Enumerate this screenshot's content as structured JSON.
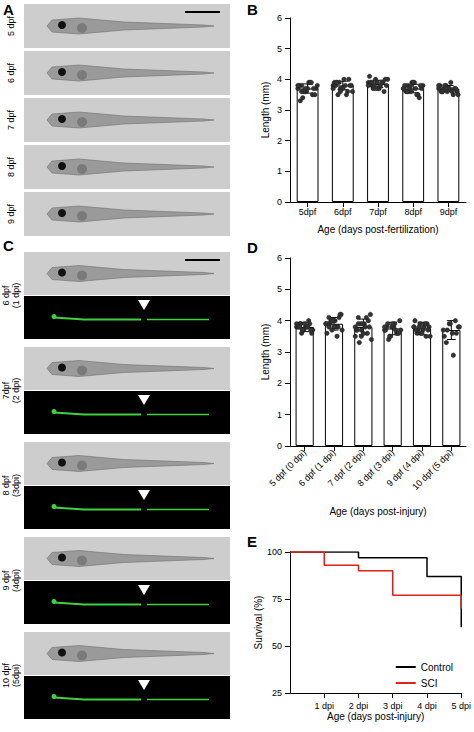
{
  "image_panels": [
    {
      "panel_label": "A",
      "rows": [
        [
          "5 dpf"
        ],
        [
          "6 dpf"
        ],
        [
          "7 dpf"
        ],
        [
          "8 dpf"
        ],
        [
          "9 dpf"
        ]
      ]
    },
    {
      "panel_label": "C",
      "rows": [
        [
          "6 dpf",
          "(1 dpi)"
        ],
        [
          "7dpf",
          "(2 dpi)"
        ],
        [
          "8 dpf",
          "(3dpi)"
        ],
        [
          "9 dpf",
          "(4dpi)"
        ],
        [
          "10 dpf",
          "(5dpi)"
        ]
      ]
    }
  ],
  "chart_data": [
    {
      "panel_label": "B",
      "type": "bar",
      "categories": [
        "5dpf",
        "6dpf",
        "7dpf",
        "8dpf",
        "9dpf"
      ],
      "values": [
        3.7,
        3.8,
        3.85,
        3.7,
        3.7
      ],
      "errors": [
        0.15,
        0.14,
        0.12,
        0.14,
        0.1
      ],
      "points": [
        [
          3.7,
          3.8,
          3.6,
          3.9,
          3.5,
          3.7,
          3.8,
          3.4,
          3.6,
          3.9,
          3.7,
          3.8,
          3.3,
          3.6,
          3.7,
          3.9,
          3.5,
          3.8,
          3.6,
          3.7
        ],
        [
          3.8,
          3.9,
          3.7,
          4.0,
          3.6,
          3.8,
          3.9,
          3.5,
          3.7,
          3.8,
          4.0,
          3.6,
          3.8,
          3.9,
          3.7,
          3.5,
          3.8,
          3.7,
          3.9,
          3.6
        ],
        [
          3.9,
          3.8,
          4.0,
          3.7,
          3.9,
          3.8,
          4.1,
          3.7,
          3.9,
          3.8,
          3.6,
          4.0,
          3.9,
          3.8,
          3.7,
          3.9,
          4.0,
          3.8,
          3.9,
          3.7
        ],
        [
          3.7,
          3.8,
          3.6,
          3.9,
          3.5,
          3.7,
          3.8,
          3.6,
          3.9,
          3.7,
          3.4,
          3.8,
          3.6,
          3.7,
          3.9,
          3.5,
          3.8,
          3.7,
          3.6,
          3.8
        ],
        [
          3.7,
          3.6,
          3.8,
          3.7,
          3.5,
          3.6,
          3.8,
          3.7,
          3.6,
          3.9,
          3.7,
          3.5,
          3.6,
          3.8,
          3.7,
          3.6,
          3.7,
          3.8,
          3.6,
          3.7
        ]
      ],
      "ylim": [
        0,
        6
      ],
      "yticks": [
        0,
        1,
        2,
        3,
        4,
        5,
        6
      ],
      "y_label": "Length (mm)",
      "x_label": "Age (days post-fertilization)",
      "color": "#ffffff",
      "marker": "circle",
      "grid": false
    },
    {
      "panel_label": "D",
      "type": "bar",
      "categories": [
        "5 dpf (0 dpi)",
        "6 dpf (1 dpi)",
        "7 dpf (2 dpi)",
        "8 dpf (3 dpi)",
        "9 dpf (4 dpi)",
        "10 dpf (5 dpi)"
      ],
      "values": [
        3.8,
        3.9,
        3.8,
        3.75,
        3.75,
        3.7
      ],
      "errors": [
        0.15,
        0.2,
        0.25,
        0.2,
        0.2,
        0.3
      ],
      "points": [
        [
          3.8,
          3.9,
          3.7,
          3.8,
          4.0,
          3.6,
          3.8,
          3.9,
          3.7,
          3.8,
          3.9,
          3.7,
          3.8,
          3.6,
          3.9,
          3.8,
          3.7,
          3.9,
          3.8,
          3.7
        ],
        [
          3.9,
          4.1,
          3.7,
          4.0,
          3.8,
          4.2,
          3.6,
          3.9,
          4.0,
          3.8,
          4.1,
          3.7,
          3.9,
          4.0,
          3.8,
          3.5,
          4.2,
          3.9,
          3.8,
          4.0
        ],
        [
          3.8,
          4.1,
          3.5,
          3.9,
          3.6,
          4.2,
          3.7,
          3.3,
          3.9,
          3.8,
          4.0,
          3.4,
          3.7,
          3.9,
          3.6,
          4.1,
          3.8,
          3.5,
          3.9,
          3.7
        ],
        [
          3.7,
          3.9,
          3.5,
          3.8,
          3.6,
          4.0,
          3.7,
          3.4,
          3.8,
          3.9,
          3.6,
          3.7,
          3.8,
          3.5,
          3.9,
          3.7,
          3.6,
          3.8
        ],
        [
          3.8,
          3.6,
          3.9,
          3.7,
          3.5,
          3.8,
          4.0,
          3.7,
          3.6,
          3.8,
          3.9,
          3.5,
          3.7,
          3.8,
          3.6,
          3.9,
          3.7,
          3.8
        ],
        [
          3.7,
          3.3,
          3.9,
          3.6,
          4.0,
          3.8,
          3.5,
          3.7,
          3.9,
          2.9,
          3.6,
          3.8
        ]
      ],
      "ylim": [
        0,
        6
      ],
      "yticks": [
        0,
        1,
        2,
        3,
        4,
        5,
        6
      ],
      "y_label": "Length (mm)",
      "x_label": "Age (days post-injury)",
      "color": "#ffffff",
      "marker": "circle",
      "grid": false
    },
    {
      "panel_label": "E",
      "type": "line",
      "line_style": "step",
      "xlim": [
        0,
        5
      ],
      "xticks": [
        {
          "value": 1,
          "label": "1 dpi"
        },
        {
          "value": 2,
          "label": "2 dpi"
        },
        {
          "value": 3,
          "label": "3 dpi"
        },
        {
          "value": 4,
          "label": "4 dpi"
        },
        {
          "value": 5,
          "label": "5 dpi"
        }
      ],
      "ylim": [
        25,
        100
      ],
      "yticks": [
        25,
        50,
        75,
        100
      ],
      "y_label": "Survival (%)",
      "x_label": "Age (days post-injury)",
      "series": [
        {
          "name": "Control",
          "color": "#000000",
          "x": [
            0,
            2,
            4,
            5
          ],
          "values": [
            100,
            97,
            87,
            60
          ]
        },
        {
          "name": "SCI",
          "color": "#e0201b",
          "x": [
            0,
            1,
            2,
            3,
            5
          ],
          "values": [
            100,
            93,
            90,
            77,
            70
          ]
        }
      ],
      "legend": "bottom-right",
      "grid": false
    }
  ]
}
